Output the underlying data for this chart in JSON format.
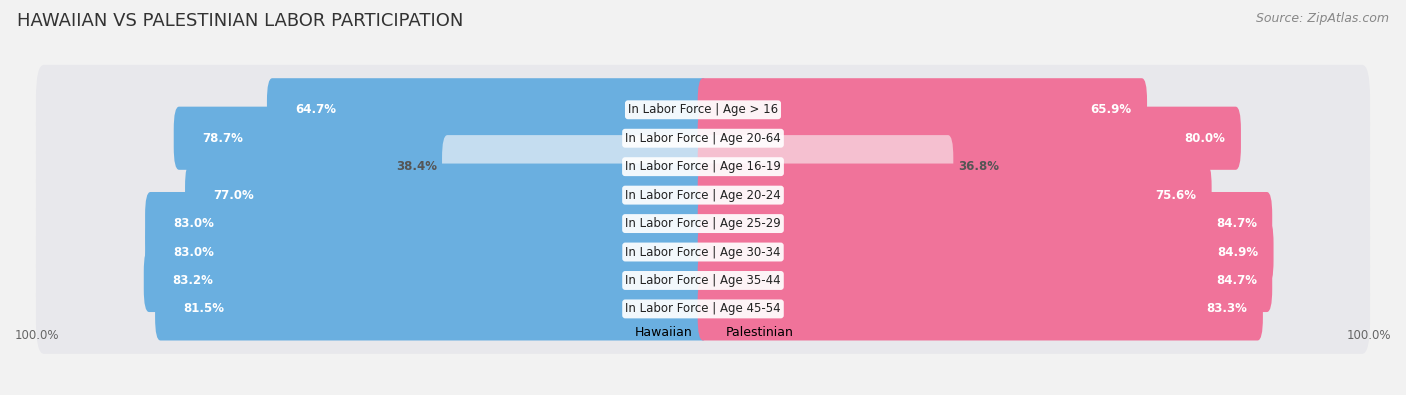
{
  "title": "HAWAIIAN VS PALESTINIAN LABOR PARTICIPATION",
  "source": "Source: ZipAtlas.com",
  "categories": [
    "In Labor Force | Age > 16",
    "In Labor Force | Age 20-64",
    "In Labor Force | Age 16-19",
    "In Labor Force | Age 20-24",
    "In Labor Force | Age 25-29",
    "In Labor Force | Age 30-34",
    "In Labor Force | Age 35-44",
    "In Labor Force | Age 45-54"
  ],
  "hawaiian_values": [
    64.7,
    78.7,
    38.4,
    77.0,
    83.0,
    83.0,
    83.2,
    81.5
  ],
  "palestinian_values": [
    65.9,
    80.0,
    36.8,
    75.6,
    84.7,
    84.9,
    84.7,
    83.3
  ],
  "hawaiian_color": "#6aafe0",
  "hawaiian_color_light": "#c5ddf0",
  "palestinian_color": "#f0739a",
  "palestinian_color_light": "#f5c0d0",
  "row_bg_color": "#e8e8ec",
  "page_bg_color": "#f2f2f2",
  "title_fontsize": 13,
  "source_fontsize": 9,
  "label_fontsize": 8.5,
  "value_fontsize": 8.5,
  "max_value": 100.0,
  "legend_hawaiian": "Hawaiian",
  "legend_palestinian": "Palestinian"
}
